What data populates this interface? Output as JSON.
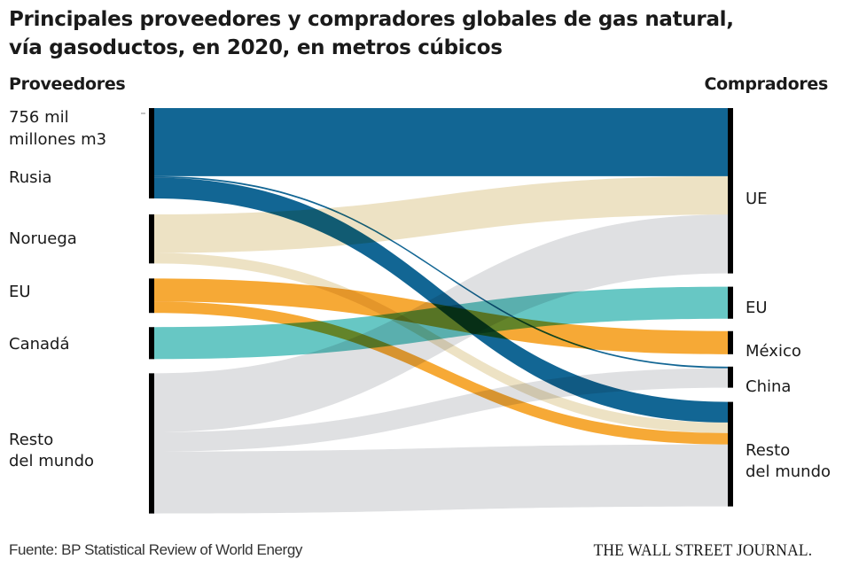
{
  "title_line1": "Principales proveedores y compradores globales de gas natural,",
  "title_line2": "vía gasoductos, en 2020, en metros cúbicos",
  "left_heading": "Proveedores",
  "right_heading": "Compradores",
  "scale_label_line1": "756 mil",
  "scale_label_line2": "millones m3",
  "footer": {
    "source": "Fuente: BP Statistical Review of World Energy",
    "brand": "THE WALL STREET JOURNAL."
  },
  "chart_data": {
    "type": "sankey",
    "title": "Principales proveedores y compradores globales de gas natural, vía gasoductos, en 2020, en metros cúbicos",
    "units": "mil millones m3 (estimated from band widths; scale bar = 756 mil millones m3)",
    "scale_reference": 756,
    "sources": [
      {
        "id": "rusia",
        "label": "Rusia",
        "color": "#005a8c"
      },
      {
        "id": "noruega",
        "label": "Noruega",
        "color": "#ece0bf"
      },
      {
        "id": "eu_src",
        "label": "EU",
        "color": "#f5a227"
      },
      {
        "id": "canada",
        "label": "Canadá",
        "color": "#5bc3c0"
      },
      {
        "id": "resto_src",
        "label": "Resto del mundo",
        "label_lines": [
          "Resto",
          "del mundo"
        ],
        "color": "#dfe0e2"
      }
    ],
    "targets": [
      {
        "id": "ue",
        "label": "UE"
      },
      {
        "id": "eu_dst",
        "label": "EU"
      },
      {
        "id": "mexico",
        "label": "México"
      },
      {
        "id": "china",
        "label": "China"
      },
      {
        "id": "resto_dst",
        "label": "Resto del mundo",
        "label_lines": [
          "Resto",
          "del mundo"
        ]
      }
    ],
    "flows": [
      {
        "source": "rusia",
        "target": "ue",
        "value": 168
      },
      {
        "source": "rusia",
        "target": "china",
        "value": 4
      },
      {
        "source": "rusia",
        "target": "resto_dst",
        "value": 51
      },
      {
        "source": "noruega",
        "target": "ue",
        "value": 95
      },
      {
        "source": "noruega",
        "target": "resto_dst",
        "value": 26
      },
      {
        "source": "eu_src",
        "target": "mexico",
        "value": 57
      },
      {
        "source": "eu_src",
        "target": "resto_dst",
        "value": 28
      },
      {
        "source": "canada",
        "target": "eu_dst",
        "value": 79
      },
      {
        "source": "resto_src",
        "target": "ue",
        "value": 145
      },
      {
        "source": "resto_src",
        "target": "china",
        "value": 48
      },
      {
        "source": "resto_src",
        "target": "resto_dst",
        "value": 153
      }
    ]
  }
}
